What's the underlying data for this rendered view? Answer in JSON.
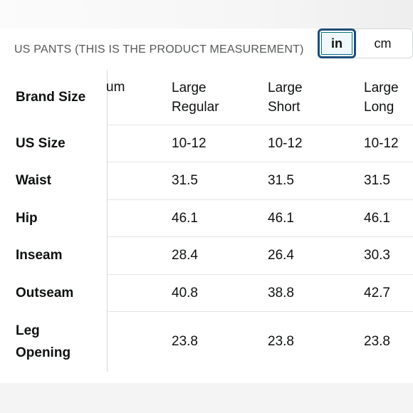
{
  "header": {
    "title": "US PANTS (THIS IS THE PRODUCT MEASUREMENT)"
  },
  "unit_toggle": {
    "options": [
      "in",
      "cm"
    ],
    "selected": "in"
  },
  "table": {
    "partial_header": "um",
    "columns": [
      {
        "line1": "Large",
        "line2": "Regular"
      },
      {
        "line1": "Large",
        "line2": "Short"
      },
      {
        "line1": "Large",
        "line2": "Long"
      }
    ],
    "header_row_label": "Brand Size",
    "rows": [
      {
        "label": "US Size",
        "values": [
          "10-12",
          "10-12",
          "10-12"
        ]
      },
      {
        "label": "Waist",
        "values": [
          "31.5",
          "31.5",
          "31.5"
        ]
      },
      {
        "label": "Hip",
        "values": [
          "46.1",
          "46.1",
          "46.1"
        ]
      },
      {
        "label": "Inseam",
        "values": [
          "28.4",
          "26.4",
          "30.3"
        ]
      },
      {
        "label": "Outseam",
        "values": [
          "40.8",
          "38.8",
          "42.7"
        ]
      },
      {
        "label_line1": "Leg",
        "label_line2": "Opening",
        "values": [
          "23.8",
          "23.8",
          "23.8"
        ]
      }
    ]
  },
  "colors": {
    "selected_border": "#1d4d77",
    "text": "#0f1111",
    "muted_text": "#565959",
    "divider": "#d5d9d9"
  }
}
